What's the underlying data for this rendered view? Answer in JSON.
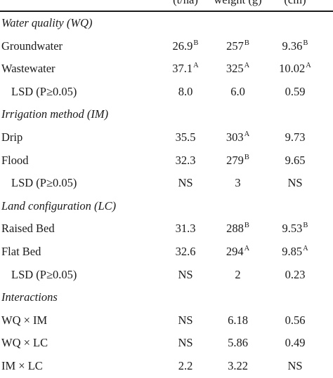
{
  "header": {
    "col1": "(t/ha)",
    "col2": "weight (g)",
    "col3": "(cm)"
  },
  "sections": [
    {
      "title": "Water quality (WQ)",
      "rows": [
        {
          "label": "Groundwater",
          "indent": false,
          "c1": "26.9",
          "c1_sup": "B",
          "c2": "257",
          "c2_sup": "B",
          "c3": "9.36",
          "c3_sup": "B"
        },
        {
          "label": "Wastewater",
          "indent": false,
          "c1": "37.1",
          "c1_sup": "A",
          "c2": "325",
          "c2_sup": "A",
          "c3": "10.02",
          "c3_sup": "A"
        },
        {
          "label": "LSD (P≥0.05)",
          "indent": true,
          "c1": "8.0",
          "c1_sup": "",
          "c2": "6.0",
          "c2_sup": "",
          "c3": "0.59",
          "c3_sup": ""
        }
      ]
    },
    {
      "title": "Irrigation method (IM)",
      "rows": [
        {
          "label": "Drip",
          "indent": false,
          "c1": "35.5",
          "c1_sup": "",
          "c2": "303",
          "c2_sup": "A",
          "c3": "9.73",
          "c3_sup": ""
        },
        {
          "label": "Flood",
          "indent": false,
          "c1": "32.3",
          "c1_sup": "",
          "c2": "279",
          "c2_sup": "B",
          "c3": "9.65",
          "c3_sup": ""
        },
        {
          "label": "LSD (P≥0.05)",
          "indent": true,
          "c1": "NS",
          "c1_sup": "",
          "c2": "3",
          "c2_sup": "",
          "c3": "NS",
          "c3_sup": ""
        }
      ]
    },
    {
      "title": "Land configuration (LC)",
      "rows": [
        {
          "label": "Raised Bed",
          "indent": false,
          "c1": "31.3",
          "c1_sup": "",
          "c2": "288",
          "c2_sup": "B",
          "c3": "9.53",
          "c3_sup": "B"
        },
        {
          "label": "Flat Bed",
          "indent": false,
          "c1": "32.6",
          "c1_sup": "",
          "c2": "294",
          "c2_sup": "A",
          "c3": "9.85",
          "c3_sup": "A"
        },
        {
          "label": "LSD (P≥0.05)",
          "indent": true,
          "c1": "NS",
          "c1_sup": "",
          "c2": "2",
          "c2_sup": "",
          "c3": "0.23",
          "c3_sup": ""
        }
      ]
    },
    {
      "title": "Interactions",
      "rows": [
        {
          "label": "WQ × IM",
          "indent": false,
          "c1": "NS",
          "c1_sup": "",
          "c2": "6.18",
          "c2_sup": "",
          "c3": "0.56",
          "c3_sup": ""
        },
        {
          "label": "WQ × LC",
          "indent": false,
          "c1": "NS",
          "c1_sup": "",
          "c2": "5.86",
          "c2_sup": "",
          "c3": "0.49",
          "c3_sup": ""
        },
        {
          "label": "IM × LC",
          "indent": false,
          "c1": "2.2",
          "c1_sup": "",
          "c2": "3.22",
          "c2_sup": "",
          "c3": "NS",
          "c3_sup": ""
        }
      ]
    }
  ]
}
